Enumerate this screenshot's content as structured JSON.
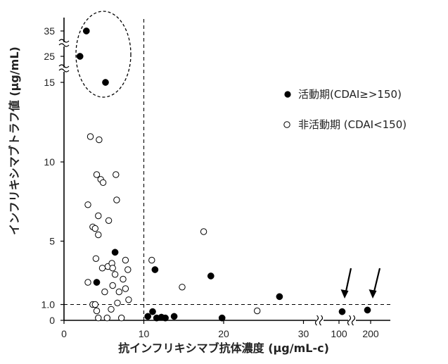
{
  "chart_data": {
    "type": "scatter",
    "xlabel": "抗インフリキシマブ抗体濃度 (μg/mL-c)",
    "ylabel": "インフリキシマブトラフ値 (μg/mL)",
    "x_ticks": [
      "0",
      "10",
      "20",
      "30",
      "100",
      "200"
    ],
    "y_ticks": [
      "0",
      "1.0",
      "5",
      "10",
      "15",
      "25",
      "35"
    ],
    "threshold_lines": {
      "x": 10,
      "y": 1.0
    },
    "legend_placement": "right",
    "grid": false,
    "series": [
      {
        "name": "活動期(CDAI≥>150)",
        "marker": "filled",
        "points": [
          {
            "x": 2.8,
            "y": 35
          },
          {
            "x": 2.0,
            "y": 25
          },
          {
            "x": 5.2,
            "y": 15
          },
          {
            "x": 6.4,
            "y": 4.3
          },
          {
            "x": 4.1,
            "y": 2.4
          },
          {
            "x": 11.4,
            "y": 3.2
          },
          {
            "x": 18.4,
            "y": 2.8
          },
          {
            "x": 27.0,
            "y": 1.5
          },
          {
            "x": 11.1,
            "y": 0.55
          },
          {
            "x": 10.5,
            "y": 0.25
          },
          {
            "x": 11.6,
            "y": 0.15
          },
          {
            "x": 12.2,
            "y": 0.2
          },
          {
            "x": 12.7,
            "y": 0.15
          },
          {
            "x": 13.8,
            "y": 0.25
          },
          {
            "x": 19.8,
            "y": 0.15
          },
          {
            "x": 110,
            "y": 0.55
          },
          {
            "x": 190,
            "y": 0.65
          }
        ]
      },
      {
        "name": "非活動期 (CDAI<150)",
        "marker": "open",
        "points": [
          {
            "x": 3.3,
            "y": 11.6
          },
          {
            "x": 4.4,
            "y": 11.4
          },
          {
            "x": 4.1,
            "y": 9.2
          },
          {
            "x": 4.6,
            "y": 8.9
          },
          {
            "x": 4.9,
            "y": 8.7
          },
          {
            "x": 6.5,
            "y": 9.2
          },
          {
            "x": 6.6,
            "y": 7.6
          },
          {
            "x": 3.0,
            "y": 7.3
          },
          {
            "x": 4.3,
            "y": 6.6
          },
          {
            "x": 5.6,
            "y": 6.3
          },
          {
            "x": 3.6,
            "y": 5.9
          },
          {
            "x": 3.9,
            "y": 5.8
          },
          {
            "x": 4.3,
            "y": 5.4
          },
          {
            "x": 17.5,
            "y": 5.6
          },
          {
            "x": 4.0,
            "y": 3.9
          },
          {
            "x": 5.5,
            "y": 3.4
          },
          {
            "x": 6.0,
            "y": 3.6
          },
          {
            "x": 6.1,
            "y": 3.3
          },
          {
            "x": 4.8,
            "y": 3.3
          },
          {
            "x": 7.7,
            "y": 3.8
          },
          {
            "x": 8.0,
            "y": 3.2
          },
          {
            "x": 6.4,
            "y": 2.9
          },
          {
            "x": 7.4,
            "y": 2.6
          },
          {
            "x": 11.0,
            "y": 3.8
          },
          {
            "x": 3.0,
            "y": 2.4
          },
          {
            "x": 5.1,
            "y": 1.8
          },
          {
            "x": 6.1,
            "y": 2.2
          },
          {
            "x": 6.9,
            "y": 1.8
          },
          {
            "x": 7.7,
            "y": 2.0
          },
          {
            "x": 8.1,
            "y": 1.3
          },
          {
            "x": 14.8,
            "y": 2.1
          },
          {
            "x": 3.6,
            "y": 1.0
          },
          {
            "x": 3.9,
            "y": 1.0
          },
          {
            "x": 4.1,
            "y": 0.6
          },
          {
            "x": 5.9,
            "y": 0.7
          },
          {
            "x": 6.7,
            "y": 1.1
          },
          {
            "x": 5.4,
            "y": 0.15
          },
          {
            "x": 7.2,
            "y": 0.15
          },
          {
            "x": 4.3,
            "y": 0.15
          },
          {
            "x": 24.2,
            "y": 0.6
          }
        ]
      }
    ]
  }
}
